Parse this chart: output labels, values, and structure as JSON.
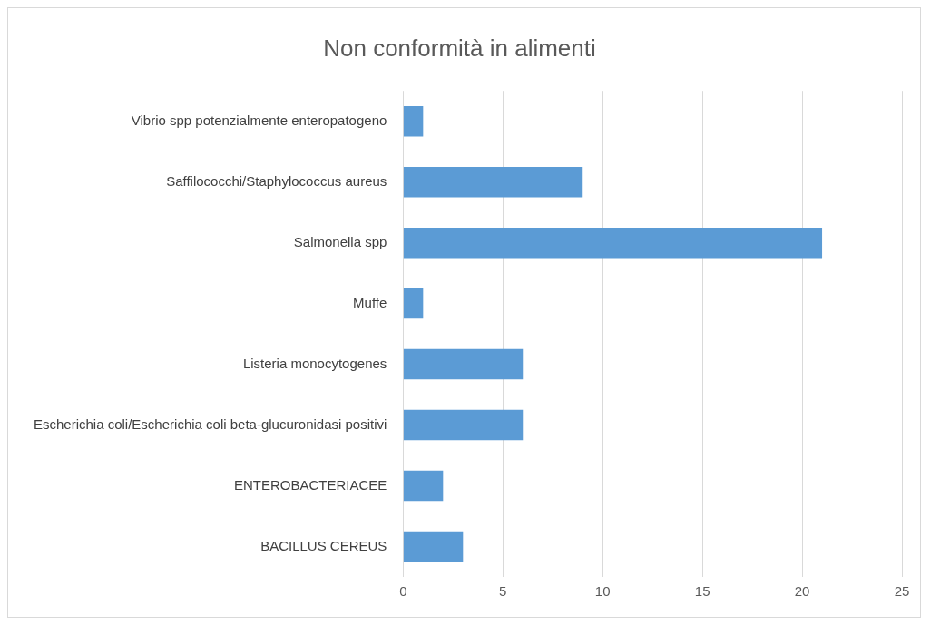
{
  "chart_data": {
    "type": "bar",
    "orientation": "horizontal",
    "title": "Non conformità in alimenti",
    "categories": [
      "Vibrio spp potenzialmente enteropatogeno",
      "Saffilococchi/Staphylococcus aureus",
      "Salmonella spp",
      "Muffe",
      "Listeria monocytogenes",
      "Escherichia coli/Escherichia coli beta-glucuronidasi positivi",
      "ENTEROBACTERIACEE",
      "BACILLUS CEREUS"
    ],
    "values": [
      1,
      9,
      21,
      1,
      6,
      6,
      2,
      3
    ],
    "color": "#5b9bd5",
    "xlim": [
      0,
      25
    ],
    "xticks": [
      0,
      5,
      10,
      15,
      20,
      25
    ],
    "grid": "x"
  }
}
